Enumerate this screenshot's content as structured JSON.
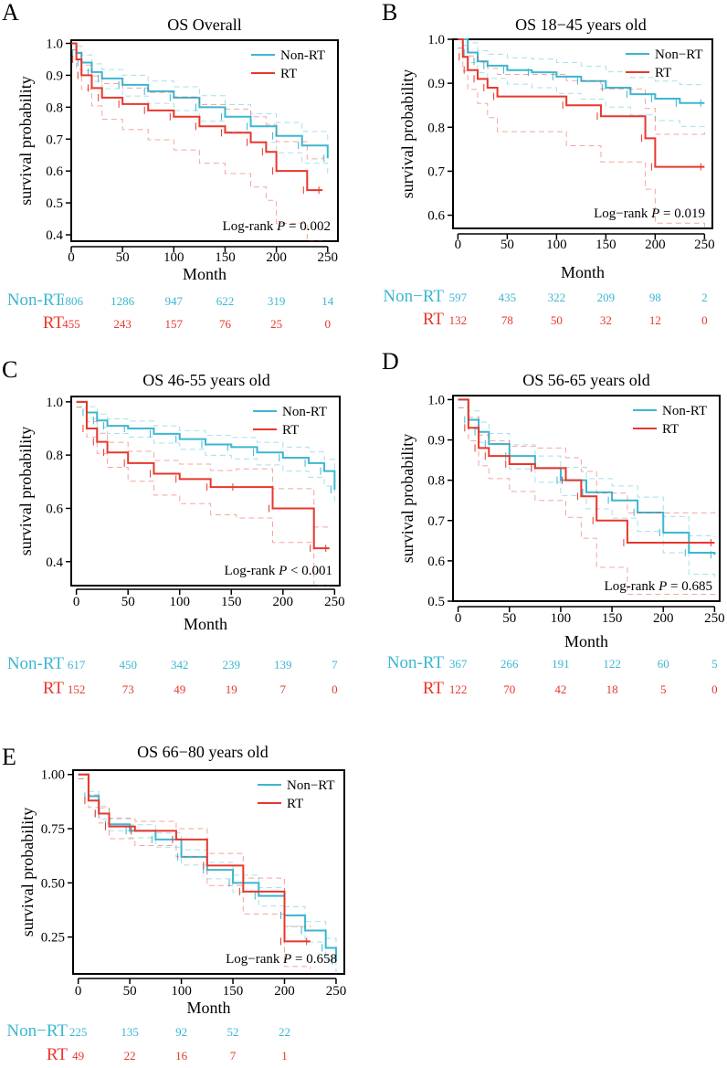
{
  "colors": {
    "non_rt": "#3bb7d1",
    "rt": "#e8372c",
    "axis": "#000000"
  },
  "chart_data": [
    {
      "type": "line",
      "panel_label": "A",
      "title": "OS Overall",
      "xlabel": "Month",
      "ylabel": "survival probability",
      "xlim": [
        0,
        260
      ],
      "ylim": [
        0.38,
        1.01
      ],
      "x_ticks": [
        0,
        50,
        100,
        150,
        200,
        250
      ],
      "y_ticks": [
        0.4,
        0.5,
        0.6,
        0.7,
        0.8,
        0.9,
        1.0
      ],
      "y_tick_labels": [
        "0.4",
        "0.5",
        "0.6",
        "0.7",
        "0.8",
        "0.9",
        "1.0"
      ],
      "legend": [
        "Non-RT",
        "RT"
      ],
      "legend_position": "top-right",
      "pvalue_prefix": "Log-rank",
      "pvalue_p": "P",
      "pvalue_rest": " = 0.002",
      "series": [
        {
          "name": "Non-RT",
          "x": [
            0,
            5,
            10,
            20,
            30,
            50,
            75,
            100,
            125,
            150,
            175,
            200,
            225,
            250
          ],
          "y": [
            1.0,
            0.97,
            0.94,
            0.91,
            0.89,
            0.87,
            0.85,
            0.83,
            0.8,
            0.77,
            0.74,
            0.71,
            0.68,
            0.64
          ]
        },
        {
          "name": "RT",
          "x": [
            0,
            5,
            10,
            20,
            30,
            50,
            75,
            100,
            125,
            150,
            175,
            190,
            200,
            230,
            245
          ],
          "y": [
            1.0,
            0.95,
            0.9,
            0.86,
            0.83,
            0.81,
            0.79,
            0.77,
            0.74,
            0.72,
            0.69,
            0.66,
            0.6,
            0.54,
            0.54
          ]
        }
      ],
      "risk_table": {
        "times": [
          0,
          50,
          100,
          150,
          200,
          250
        ],
        "rows": [
          {
            "name": "Non-RT",
            "values": [
              "1806",
              "1286",
              "947",
              "622",
              "319",
              "14"
            ]
          },
          {
            "name": "RT",
            "values": [
              "455",
              "243",
              "157",
              "76",
              "25",
              "0"
            ]
          }
        ]
      }
    },
    {
      "type": "line",
      "panel_label": "B",
      "title": "OS 18−45 years old",
      "xlabel": "Month",
      "ylabel": "survival probability",
      "xlim": [
        -5,
        258
      ],
      "ylim": [
        0.57,
        1.0
      ],
      "x_ticks": [
        0,
        50,
        100,
        150,
        200,
        250
      ],
      "y_ticks": [
        0.6,
        0.7,
        0.8,
        0.9,
        1.0
      ],
      "y_tick_labels": [
        "0.6",
        "0.7",
        "0.8",
        "0.9",
        "1.0"
      ],
      "legend": [
        "Non−RT",
        "RT"
      ],
      "legend_position": "top-right",
      "pvalue_prefix": "Log−rank",
      "pvalue_p": "P",
      "pvalue_rest": " = 0.019",
      "series": [
        {
          "name": "Non-RT",
          "x": [
            0,
            10,
            20,
            30,
            50,
            75,
            100,
            125,
            150,
            175,
            200,
            225,
            250
          ],
          "y": [
            1.0,
            0.97,
            0.95,
            0.94,
            0.93,
            0.925,
            0.915,
            0.905,
            0.89,
            0.875,
            0.865,
            0.855,
            0.855
          ]
        },
        {
          "name": "RT",
          "x": [
            0,
            5,
            10,
            20,
            30,
            40,
            110,
            145,
            190,
            200,
            250
          ],
          "y": [
            1.0,
            0.96,
            0.93,
            0.91,
            0.89,
            0.87,
            0.85,
            0.825,
            0.775,
            0.71,
            0.71
          ]
        }
      ],
      "risk_table": {
        "times": [
          0,
          50,
          100,
          150,
          200,
          250
        ],
        "rows": [
          {
            "name": "Non−RT",
            "values": [
              "597",
              "435",
              "322",
              "209",
              "98",
              "2"
            ]
          },
          {
            "name": "RT",
            "values": [
              "132",
              "78",
              "50",
              "32",
              "12",
              "0"
            ]
          }
        ]
      }
    },
    {
      "type": "line",
      "panel_label": "C",
      "title": "OS 46-55 years old",
      "xlabel": "Month",
      "ylabel": "survival probability",
      "xlim": [
        -5,
        255
      ],
      "ylim": [
        0.31,
        1.02
      ],
      "x_ticks": [
        0,
        50,
        100,
        150,
        200,
        250
      ],
      "y_ticks": [
        0.4,
        0.6,
        0.8,
        1.0
      ],
      "y_tick_labels": [
        "0.4",
        "0.6",
        "0.8",
        "1.0"
      ],
      "legend": [
        "Non-RT",
        "RT"
      ],
      "legend_position": "top-right",
      "pvalue_prefix": "Log-rank",
      "pvalue_p": "P",
      "pvalue_rest": " < 0.001",
      "series": [
        {
          "name": "Non-RT",
          "x": [
            0,
            10,
            20,
            30,
            50,
            75,
            100,
            125,
            150,
            175,
            200,
            225,
            240,
            250
          ],
          "y": [
            1.0,
            0.96,
            0.93,
            0.91,
            0.9,
            0.88,
            0.86,
            0.84,
            0.83,
            0.81,
            0.79,
            0.77,
            0.74,
            0.67
          ]
        },
        {
          "name": "RT",
          "x": [
            0,
            10,
            20,
            30,
            50,
            75,
            100,
            130,
            155,
            190,
            230,
            245
          ],
          "y": [
            1.0,
            0.9,
            0.85,
            0.81,
            0.77,
            0.73,
            0.71,
            0.68,
            0.68,
            0.6,
            0.45,
            0.45
          ]
        }
      ],
      "risk_table": {
        "times": [
          0,
          50,
          100,
          150,
          200,
          250
        ],
        "rows": [
          {
            "name": "Non-RT",
            "values": [
              "617",
              "450",
              "342",
              "239",
              "139",
              "7"
            ]
          },
          {
            "name": "RT",
            "values": [
              "152",
              "73",
              "49",
              "19",
              "7",
              "0"
            ]
          }
        ]
      }
    },
    {
      "type": "line",
      "panel_label": "D",
      "title": "OS 56-65 years old",
      "xlabel": "Month",
      "ylabel": "survival probability",
      "xlim": [
        -5,
        255
      ],
      "ylim": [
        0.5,
        1.01
      ],
      "x_ticks": [
        0,
        50,
        100,
        150,
        200,
        250
      ],
      "y_ticks": [
        0.5,
        0.6,
        0.7,
        0.8,
        0.9,
        1.0
      ],
      "y_tick_labels": [
        "0.5",
        "0.6",
        "0.7",
        "0.8",
        "0.9",
        "1.0"
      ],
      "legend": [
        "Non-RT",
        "RT"
      ],
      "legend_position": "top-right",
      "pvalue_prefix": "Log-rank",
      "pvalue_p": "P",
      "pvalue_rest": " = 0.685",
      "series": [
        {
          "name": "Non-RT",
          "x": [
            0,
            10,
            20,
            30,
            50,
            75,
            100,
            125,
            150,
            175,
            200,
            225,
            250
          ],
          "y": [
            1.0,
            0.95,
            0.92,
            0.89,
            0.86,
            0.83,
            0.8,
            0.77,
            0.75,
            0.72,
            0.67,
            0.62,
            0.615
          ]
        },
        {
          "name": "RT",
          "x": [
            0,
            10,
            20,
            30,
            50,
            75,
            105,
            120,
            135,
            165,
            250
          ],
          "y": [
            1.0,
            0.93,
            0.88,
            0.86,
            0.84,
            0.83,
            0.8,
            0.76,
            0.7,
            0.645,
            0.645
          ]
        }
      ],
      "risk_table": {
        "times": [
          0,
          50,
          100,
          150,
          200,
          250
        ],
        "rows": [
          {
            "name": "Non-RT",
            "values": [
              "367",
              "266",
              "191",
              "122",
              "60",
              "5"
            ]
          },
          {
            "name": "RT",
            "values": [
              "122",
              "70",
              "42",
              "18",
              "5",
              "0"
            ]
          }
        ]
      }
    },
    {
      "type": "line",
      "panel_label": "E",
      "title": "OS 66−80 years old",
      "xlabel": "Month",
      "ylabel": "survival probability",
      "xlim": [
        -5,
        258
      ],
      "ylim": [
        0.08,
        1.02
      ],
      "x_ticks": [
        0,
        50,
        100,
        150,
        200,
        250
      ],
      "y_ticks": [
        0.25,
        0.5,
        0.75,
        1.0
      ],
      "y_tick_labels": [
        "0.25",
        "0.50",
        "0.75",
        "1.00"
      ],
      "legend": [
        "Non−RT",
        "RT"
      ],
      "legend_position": "top-right",
      "pvalue_prefix": "Log−rank",
      "pvalue_p": "P",
      "pvalue_rest": " = 0.658",
      "series": [
        {
          "name": "Non-RT",
          "x": [
            0,
            10,
            20,
            30,
            50,
            75,
            100,
            125,
            150,
            175,
            200,
            220,
            240,
            250
          ],
          "y": [
            1.0,
            0.9,
            0.82,
            0.77,
            0.74,
            0.7,
            0.62,
            0.56,
            0.5,
            0.44,
            0.35,
            0.28,
            0.2,
            0.14
          ]
        },
        {
          "name": "RT",
          "x": [
            0,
            10,
            20,
            30,
            55,
            95,
            125,
            160,
            200,
            225
          ],
          "y": [
            1.0,
            0.88,
            0.82,
            0.76,
            0.74,
            0.7,
            0.58,
            0.46,
            0.23,
            0.23
          ]
        }
      ],
      "risk_table": {
        "times": [
          0,
          50,
          100,
          150,
          200
        ],
        "rows": [
          {
            "name": "Non−RT",
            "values": [
              "225",
              "135",
              "92",
              "52",
              "22"
            ]
          },
          {
            "name": "RT",
            "values": [
              "49",
              "22",
              "16",
              "7",
              "1"
            ]
          }
        ]
      }
    }
  ]
}
